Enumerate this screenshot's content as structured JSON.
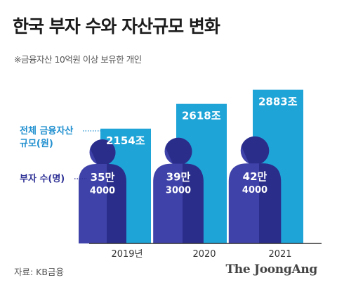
{
  "title": "한국 부자 수와 자산규모 변화",
  "subtitle": "※금융자산 10억원 이상 보유한 개인",
  "source": "자료: KB금융",
  "brand": "The JoongAng",
  "legend": {
    "assets_label_line1": "전체 금융자산",
    "assets_label_line2": "규모(원)",
    "people_label": "부자 수(명)"
  },
  "colors": {
    "bar": "#1fa4d8",
    "person_light": "#3f42a8",
    "person_dark": "#2a2d8a",
    "legend_text": "#1f8fcf",
    "people_text": "#2f3296",
    "axis": "#333333"
  },
  "chart_data": {
    "type": "bar",
    "categories": [
      "2019년",
      "2020",
      "2021"
    ],
    "series": [
      {
        "name": "전체 금융자산 규모(원)",
        "values": [
          2154,
          2618,
          2883
        ],
        "labels": [
          "2154조",
          "2618조",
          "2883조"
        ]
      },
      {
        "name": "부자 수(명)",
        "values": [
          354000,
          393000,
          424000
        ],
        "labels": [
          [
            "35만",
            "4000"
          ],
          [
            "39만",
            "3000"
          ],
          [
            "42만",
            "4000"
          ]
        ]
      }
    ],
    "title": "한국 부자 수와 자산규모 변화",
    "subtitle": "※금융자산 10억원 이상 보유한 개인",
    "xlabel": "",
    "ylabel": "",
    "ylim": [
      0,
      3300
    ],
    "grid": false
  }
}
